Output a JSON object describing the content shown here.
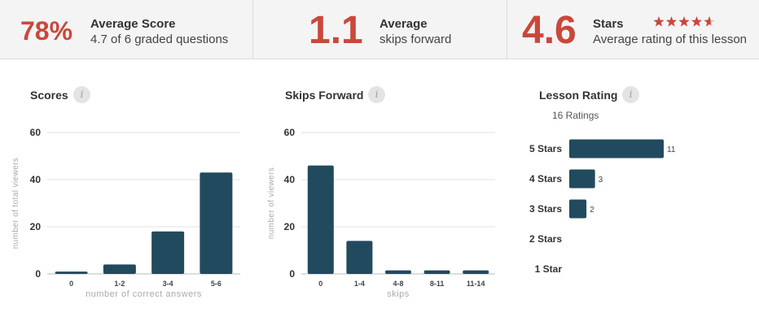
{
  "stats": [
    {
      "big": "78%",
      "title": "Average Score",
      "sub": "4.7 of 6 graded questions"
    },
    {
      "big": "1.1",
      "title": "Average",
      "sub": "skips forward"
    },
    {
      "big": "4.6",
      "title": "Stars",
      "sub": "Average rating of this lesson",
      "star_rating": 4.6,
      "star_max": 5
    }
  ],
  "colors": {
    "accent": "#c9483b",
    "bar": "#224a5e",
    "star_empty": "#cccccc"
  },
  "icons": {
    "info": "info-icon",
    "star": "star-icon"
  },
  "info_glyph": "i",
  "chart_data": [
    {
      "type": "bar",
      "title": "Scores",
      "xlabel": "number of correct answers",
      "ylabel": "number of total viewers",
      "categories": [
        "0",
        "1-2",
        "3-4",
        "5-6"
      ],
      "values": [
        1,
        4,
        18,
        43
      ],
      "ylim": [
        0,
        60
      ],
      "yticks": [
        0,
        20,
        40,
        60
      ],
      "grid": true
    },
    {
      "type": "bar",
      "title": "Skips Forward",
      "xlabel": "skips",
      "ylabel": "number of viewers",
      "categories": [
        "0",
        "1-4",
        "4-8",
        "8-11",
        "11-14"
      ],
      "values": [
        46,
        14,
        1.5,
        1.5,
        1.5
      ],
      "ylim": [
        0,
        60
      ],
      "yticks": [
        0,
        20,
        40,
        60
      ],
      "grid": true
    },
    {
      "type": "bar",
      "orientation": "horizontal",
      "title": "Lesson Rating",
      "subtitle": "16 Ratings",
      "categories": [
        "5 Stars",
        "4 Stars",
        "3 Stars",
        "2 Stars",
        "1 Star"
      ],
      "values": [
        11,
        3,
        2,
        0,
        0
      ],
      "value_labels": [
        "11",
        "3",
        "2",
        "",
        ""
      ]
    }
  ]
}
